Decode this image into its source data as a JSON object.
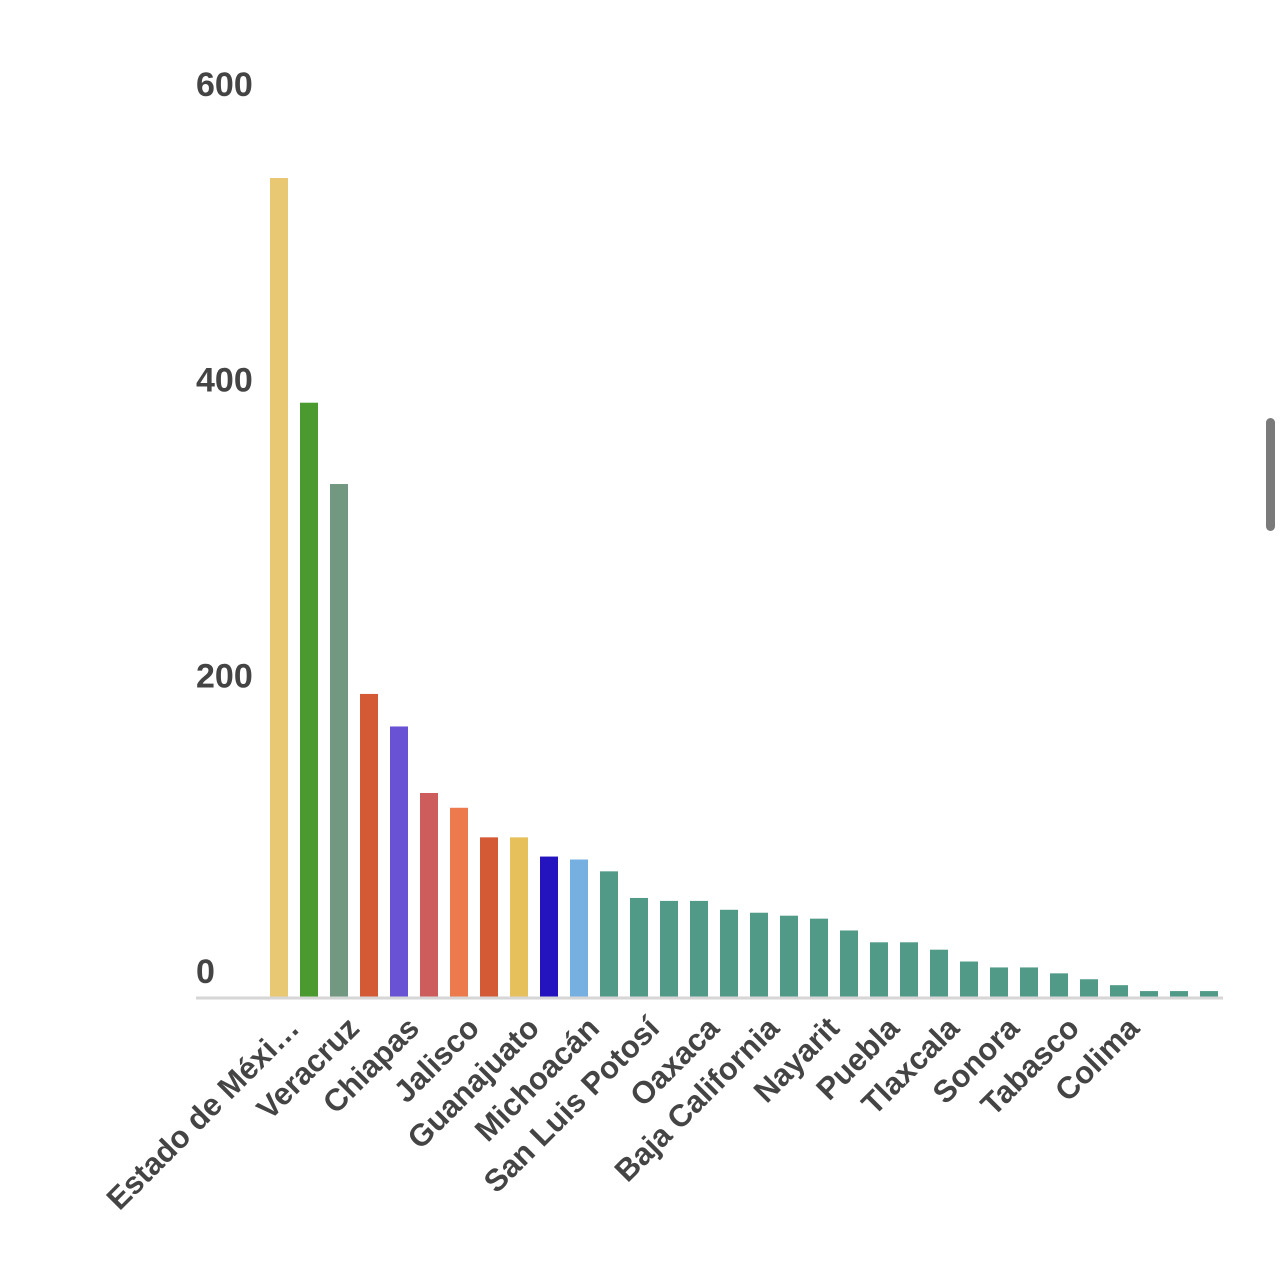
{
  "chart_data": {
    "type": "bar",
    "title": "",
    "xlabel": "",
    "ylabel": "",
    "ylim": [
      0,
      600
    ],
    "yticks": [
      0,
      200,
      400,
      600
    ],
    "grid": false,
    "categories": [
      "Estado de Méxi…",
      "",
      "Veracruz",
      "",
      "Chiapas",
      "",
      "Jalisco",
      "",
      "Guanajuato",
      "",
      "Michoacán",
      "",
      "San Luis Potosí",
      "",
      "Oaxaca",
      "",
      "Baja California",
      "",
      "Nayarit",
      "",
      "Puebla",
      "",
      "Tlaxcala",
      "",
      "Sonora",
      "",
      "Tabasco",
      "",
      "Colima",
      "",
      "",
      ""
    ],
    "values": [
      554,
      402,
      347,
      205,
      183,
      138,
      128,
      108,
      108,
      95,
      93,
      85,
      67,
      65,
      65,
      59,
      57,
      55,
      53,
      45,
      37,
      37,
      32,
      24,
      20,
      20,
      16,
      12,
      8,
      4,
      4,
      4
    ],
    "colors": [
      "#e8c872",
      "#4a9a30",
      "#739882",
      "#d35a35",
      "#6a52d4",
      "#cd5c5c",
      "#ec7a4c",
      "#d35a35",
      "#e6c05a",
      "#2414c0",
      "#76b0e0",
      "#519a88",
      "#519a88",
      "#519a88",
      "#519a88",
      "#519a88",
      "#519a88",
      "#519a88",
      "#519a88",
      "#519a88",
      "#519a88",
      "#519a88",
      "#519a88",
      "#519a88",
      "#519a88",
      "#519a88",
      "#519a88",
      "#519a88",
      "#519a88",
      "#519a88",
      "#519a88",
      "#519a88"
    ]
  }
}
